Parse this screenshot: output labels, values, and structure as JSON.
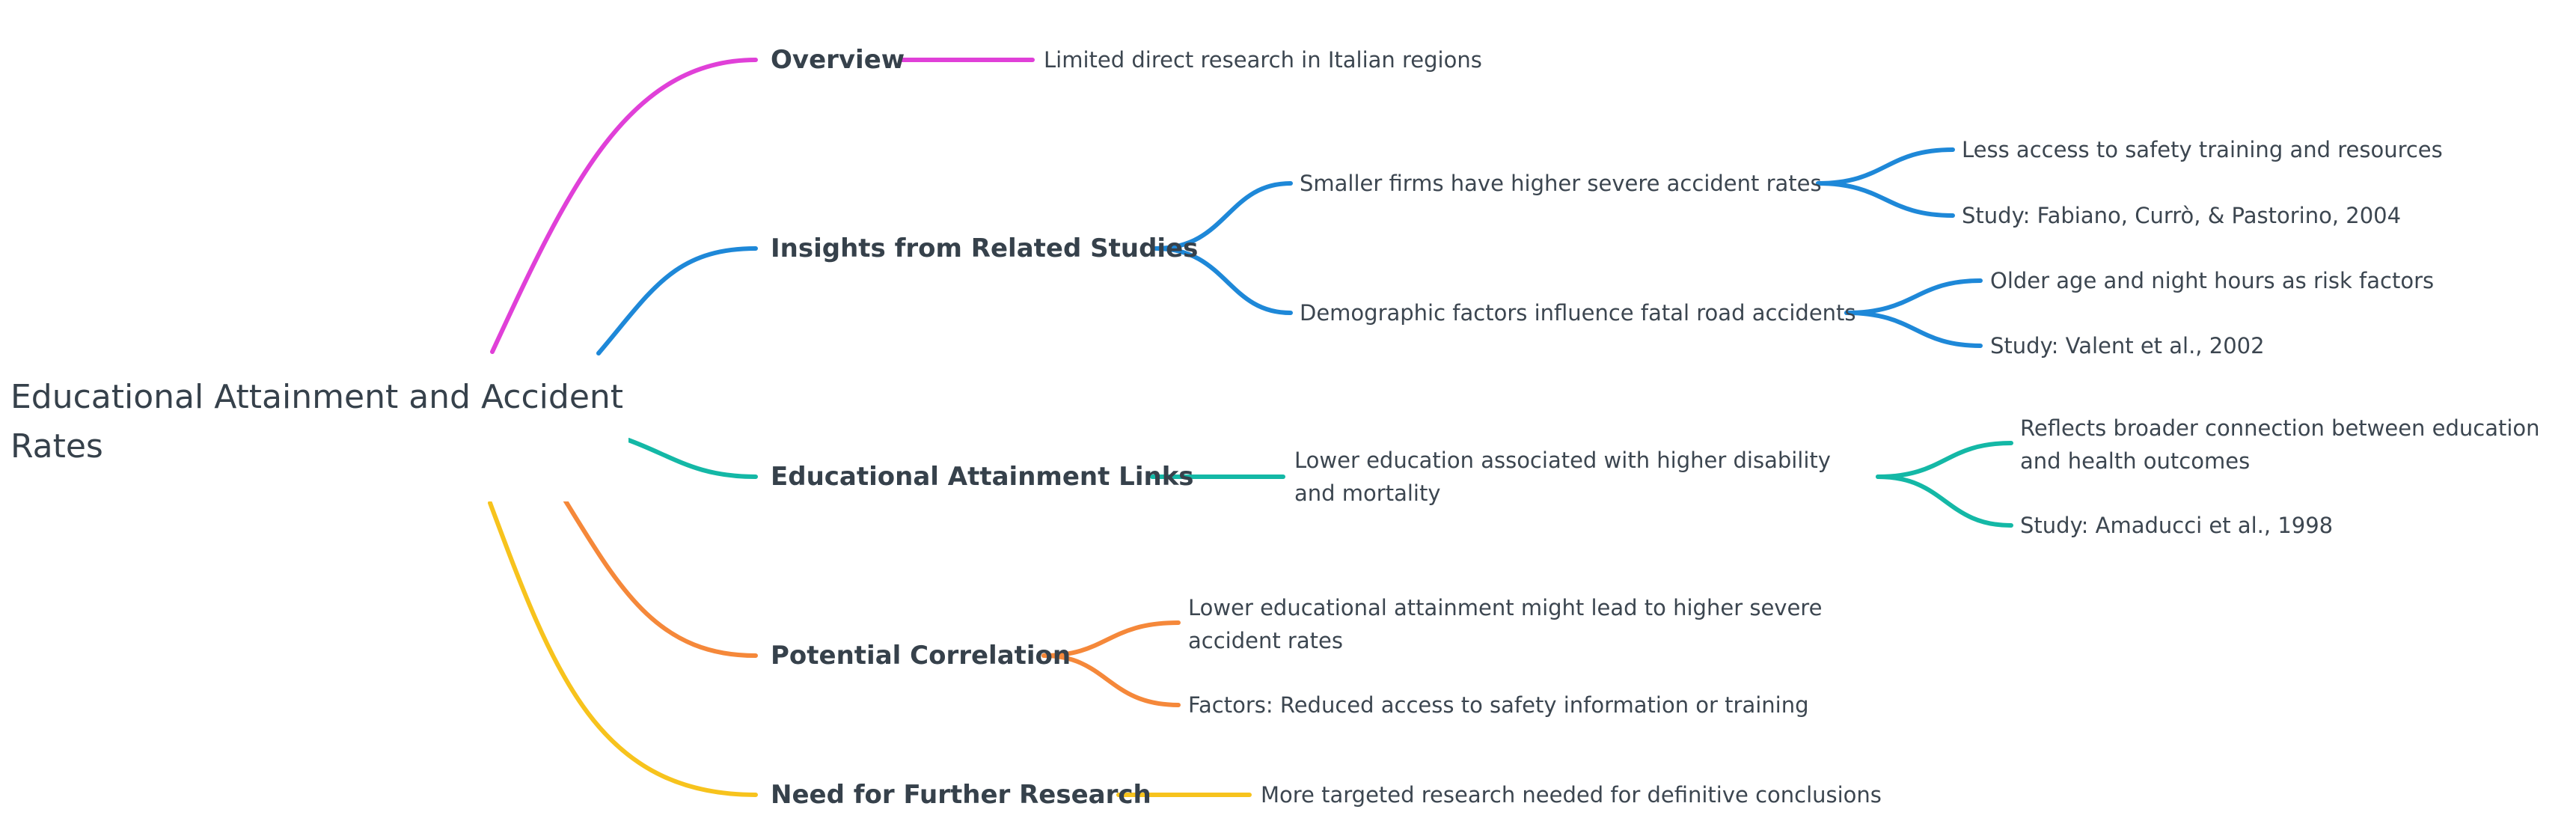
{
  "root": {
    "title": "Educational Attainment and Accident Rates"
  },
  "colors": {
    "overview": "#e040d8",
    "insights": "#1e88d8",
    "links": "#14b8a6",
    "correlation": "#f5883a",
    "research": "#f7c31d",
    "text": "#36414b"
  },
  "branches": {
    "overview": {
      "label": "Overview",
      "children": [
        "Limited direct research in Italian regions"
      ]
    },
    "insights": {
      "label": "Insights from Related Studies",
      "children": [
        {
          "label": "Smaller firms have higher severe accident rates",
          "children": [
            "Less access to safety training and resources",
            "Study: Fabiano, Currò, & Pastorino, 2004"
          ]
        },
        {
          "label": "Demographic factors influence fatal road accidents",
          "children": [
            "Older age and night hours as risk factors",
            "Study: Valent et al., 2002"
          ]
        }
      ]
    },
    "links": {
      "label": "Educational Attainment Links",
      "children": [
        {
          "label": "Lower education associated with higher disability and mortality",
          "children": [
            "Reflects broader connection between education and health outcomes",
            "Study: Amaducci et al., 1998"
          ]
        }
      ]
    },
    "correlation": {
      "label": "Potential Correlation",
      "children": [
        "Lower educational attainment might lead to higher severe accident rates",
        "Factors: Reduced access to safety information or training"
      ]
    },
    "research": {
      "label": "Need for Further Research",
      "children": [
        "More targeted research needed for definitive conclusions"
      ]
    }
  }
}
